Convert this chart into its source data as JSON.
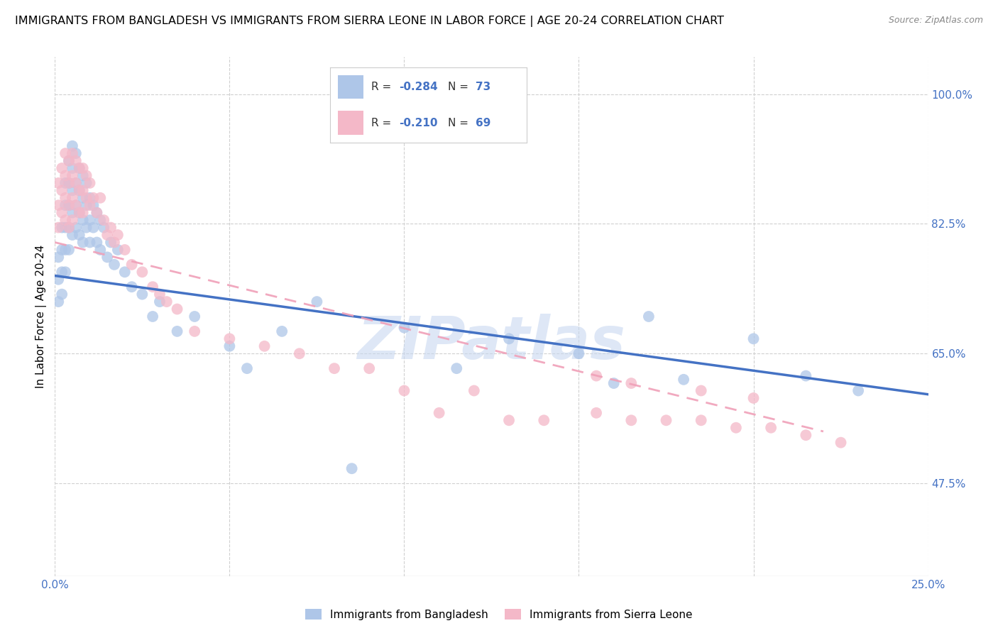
{
  "title": "IMMIGRANTS FROM BANGLADESH VS IMMIGRANTS FROM SIERRA LEONE IN LABOR FORCE | AGE 20-24 CORRELATION CHART",
  "source": "Source: ZipAtlas.com",
  "ylabel": "In Labor Force | Age 20-24",
  "xlim": [
    0.0,
    0.25
  ],
  "ylim": [
    0.35,
    1.05
  ],
  "x_ticks": [
    0.0,
    0.05,
    0.1,
    0.15,
    0.2,
    0.25
  ],
  "x_tick_labels": [
    "0.0%",
    "",
    "",
    "",
    "",
    "25.0%"
  ],
  "y_ticks_pos": [
    0.475,
    0.65,
    0.825,
    1.0
  ],
  "y_tick_labels": [
    "47.5%",
    "65.0%",
    "82.5%",
    "100.0%"
  ],
  "bangladesh_R": "-0.284",
  "bangladesh_N": "73",
  "sierra_leone_R": "-0.210",
  "sierra_leone_N": "69",
  "bangladesh_color": "#aec6e8",
  "sierra_leone_color": "#f4b8c8",
  "bangladesh_line_color": "#4472c4",
  "sierra_leone_line_color": "#f0a0b8",
  "watermark": "ZIPatlas",
  "watermark_color": "#c8d8f0",
  "bangladesh_line_x0": 0.0,
  "bangladesh_line_y0": 0.755,
  "bangladesh_line_x1": 0.25,
  "bangladesh_line_y1": 0.595,
  "sierra_leone_line_x0": 0.0,
  "sierra_leone_line_y0": 0.8,
  "sierra_leone_line_x1": 0.22,
  "sierra_leone_line_y1": 0.545,
  "bangladesh_x": [
    0.001,
    0.001,
    0.001,
    0.002,
    0.002,
    0.002,
    0.002,
    0.003,
    0.003,
    0.003,
    0.003,
    0.003,
    0.004,
    0.004,
    0.004,
    0.004,
    0.004,
    0.005,
    0.005,
    0.005,
    0.005,
    0.005,
    0.006,
    0.006,
    0.006,
    0.006,
    0.007,
    0.007,
    0.007,
    0.007,
    0.008,
    0.008,
    0.008,
    0.008,
    0.009,
    0.009,
    0.009,
    0.01,
    0.01,
    0.01,
    0.011,
    0.011,
    0.012,
    0.012,
    0.013,
    0.013,
    0.014,
    0.015,
    0.016,
    0.017,
    0.018,
    0.02,
    0.022,
    0.025,
    0.028,
    0.03,
    0.035,
    0.04,
    0.05,
    0.055,
    0.065,
    0.075,
    0.085,
    0.1,
    0.115,
    0.13,
    0.15,
    0.16,
    0.17,
    0.18,
    0.2,
    0.215,
    0.23
  ],
  "bangladesh_y": [
    0.78,
    0.75,
    0.72,
    0.82,
    0.79,
    0.76,
    0.73,
    0.88,
    0.85,
    0.82,
    0.79,
    0.76,
    0.91,
    0.88,
    0.85,
    0.82,
    0.79,
    0.93,
    0.9,
    0.87,
    0.84,
    0.81,
    0.92,
    0.88,
    0.85,
    0.82,
    0.9,
    0.87,
    0.84,
    0.81,
    0.89,
    0.86,
    0.83,
    0.8,
    0.88,
    0.85,
    0.82,
    0.86,
    0.83,
    0.8,
    0.85,
    0.82,
    0.84,
    0.8,
    0.83,
    0.79,
    0.82,
    0.78,
    0.8,
    0.77,
    0.79,
    0.76,
    0.74,
    0.73,
    0.7,
    0.72,
    0.68,
    0.7,
    0.66,
    0.63,
    0.68,
    0.72,
    0.495,
    0.685,
    0.63,
    0.67,
    0.65,
    0.61,
    0.7,
    0.615,
    0.67,
    0.62,
    0.6
  ],
  "sierra_leone_x": [
    0.001,
    0.001,
    0.001,
    0.002,
    0.002,
    0.002,
    0.003,
    0.003,
    0.003,
    0.003,
    0.004,
    0.004,
    0.004,
    0.004,
    0.005,
    0.005,
    0.005,
    0.005,
    0.006,
    0.006,
    0.006,
    0.007,
    0.007,
    0.007,
    0.008,
    0.008,
    0.008,
    0.009,
    0.009,
    0.01,
    0.01,
    0.011,
    0.012,
    0.013,
    0.014,
    0.015,
    0.016,
    0.017,
    0.018,
    0.02,
    0.022,
    0.025,
    0.028,
    0.03,
    0.032,
    0.035,
    0.04,
    0.05,
    0.06,
    0.07,
    0.08,
    0.09,
    0.1,
    0.11,
    0.12,
    0.13,
    0.14,
    0.155,
    0.165,
    0.175,
    0.185,
    0.195,
    0.205,
    0.215,
    0.225,
    0.155,
    0.165,
    0.185,
    0.2
  ],
  "sierra_leone_y": [
    0.88,
    0.85,
    0.82,
    0.9,
    0.87,
    0.84,
    0.92,
    0.89,
    0.86,
    0.83,
    0.91,
    0.88,
    0.85,
    0.82,
    0.92,
    0.89,
    0.86,
    0.83,
    0.91,
    0.88,
    0.85,
    0.9,
    0.87,
    0.84,
    0.9,
    0.87,
    0.84,
    0.89,
    0.86,
    0.88,
    0.85,
    0.86,
    0.84,
    0.86,
    0.83,
    0.81,
    0.82,
    0.8,
    0.81,
    0.79,
    0.77,
    0.76,
    0.74,
    0.73,
    0.72,
    0.71,
    0.68,
    0.67,
    0.66,
    0.65,
    0.63,
    0.63,
    0.6,
    0.57,
    0.6,
    0.56,
    0.56,
    0.57,
    0.56,
    0.56,
    0.56,
    0.55,
    0.55,
    0.54,
    0.53,
    0.62,
    0.61,
    0.6,
    0.59
  ]
}
